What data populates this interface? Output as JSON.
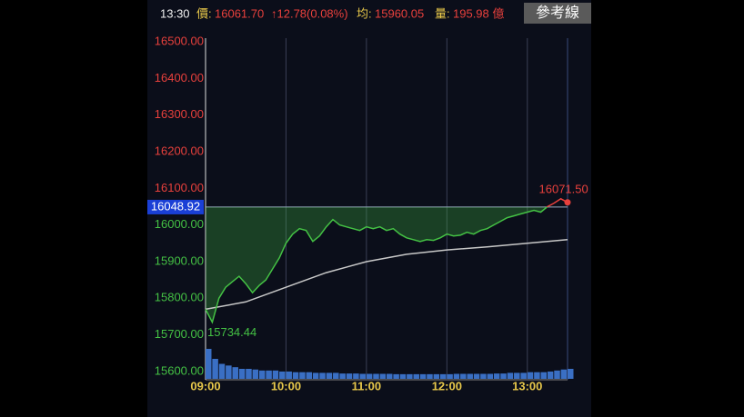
{
  "header": {
    "time": "13:30",
    "price_label": "價:",
    "price": "16061.70",
    "change": "↑12.78(0.08%)",
    "avg_label": "均:",
    "avg": "15960.05",
    "volume_label": "量:",
    "volume": "195.98 億",
    "button": "參考線"
  },
  "chart_data": {
    "type": "line",
    "x": [
      "09:00",
      "09:05",
      "09:10",
      "09:15",
      "09:20",
      "09:25",
      "09:30",
      "09:35",
      "09:40",
      "09:45",
      "09:50",
      "09:55",
      "10:00",
      "10:05",
      "10:10",
      "10:15",
      "10:20",
      "10:25",
      "10:30",
      "10:35",
      "10:40",
      "10:45",
      "10:50",
      "10:55",
      "11:00",
      "11:05",
      "11:10",
      "11:15",
      "11:20",
      "11:25",
      "11:30",
      "11:35",
      "11:40",
      "11:45",
      "11:50",
      "11:55",
      "12:00",
      "12:05",
      "12:10",
      "12:15",
      "12:20",
      "12:25",
      "12:30",
      "12:35",
      "12:40",
      "12:45",
      "12:50",
      "12:55",
      "13:00",
      "13:05",
      "13:10",
      "13:15",
      "13:20",
      "13:25",
      "13:30"
    ],
    "values": [
      15770,
      15734.44,
      15800,
      15830,
      15845,
      15860,
      15840,
      15815,
      15835,
      15850,
      15880,
      15910,
      15950,
      15975,
      15990,
      15985,
      15955,
      15970,
      15995,
      16015,
      16000,
      15995,
      15990,
      15985,
      15995,
      15990,
      15995,
      15985,
      15990,
      15975,
      15965,
      15960,
      15955,
      15960,
      15958,
      15965,
      15975,
      15970,
      15972,
      15980,
      15975,
      15985,
      15990,
      16000,
      16010,
      16020,
      16025,
      16030,
      16035,
      16040,
      16035,
      16050,
      16060,
      16071.5,
      16061.7
    ],
    "average": {
      "x": [
        "09:00",
        "09:30",
        "10:00",
        "10:30",
        "11:00",
        "11:30",
        "12:00",
        "12:30",
        "13:00",
        "13:30"
      ],
      "values": [
        15770,
        15790,
        15830,
        15870,
        15900,
        15920,
        15932,
        15940,
        15950,
        15960.05
      ],
      "color": "#c8c8c8"
    },
    "volume": {
      "values": [
        90,
        60,
        45,
        40,
        35,
        30,
        30,
        28,
        25,
        25,
        25,
        22,
        22,
        20,
        20,
        20,
        18,
        18,
        18,
        18,
        16,
        16,
        16,
        15,
        15,
        15,
        15,
        15,
        14,
        14,
        14,
        14,
        14,
        14,
        14,
        14,
        14,
        15,
        15,
        15,
        15,
        15,
        15,
        16,
        16,
        18,
        18,
        18,
        20,
        20,
        20,
        22,
        25,
        28,
        30
      ],
      "color": "#3a6fc4"
    },
    "reference": {
      "value": 16048.92,
      "label": "16048.92",
      "color": "#1a3fd6"
    },
    "up_color": "#e8403c",
    "down_color": "#44c144",
    "annotations": [
      {
        "x": "13:25",
        "value": 16071.5,
        "label": "16071.50"
      },
      {
        "x": "09:05",
        "value": 15734.44,
        "label": "15734.44"
      }
    ],
    "xlim": [
      "09:00",
      "13:30"
    ],
    "xticks": [
      "09:00",
      "10:00",
      "11:00",
      "12:00",
      "13:00"
    ],
    "ylim": [
      15580,
      16510
    ],
    "yticks": [
      {
        "value": 15600,
        "label": "15600.00"
      },
      {
        "value": 15700,
        "label": "15700.00"
      },
      {
        "value": 15800,
        "label": "15800.00"
      },
      {
        "value": 15900,
        "label": "15900.00"
      },
      {
        "value": 16000,
        "label": "16000.00"
      },
      {
        "value": 16100,
        "label": "16100.00"
      },
      {
        "value": 16200,
        "label": "16200.00"
      },
      {
        "value": 16300,
        "label": "16300.00"
      },
      {
        "value": 16400,
        "label": "16400.00"
      },
      {
        "value": 16500,
        "label": "16500.00"
      }
    ],
    "grid": true
  }
}
